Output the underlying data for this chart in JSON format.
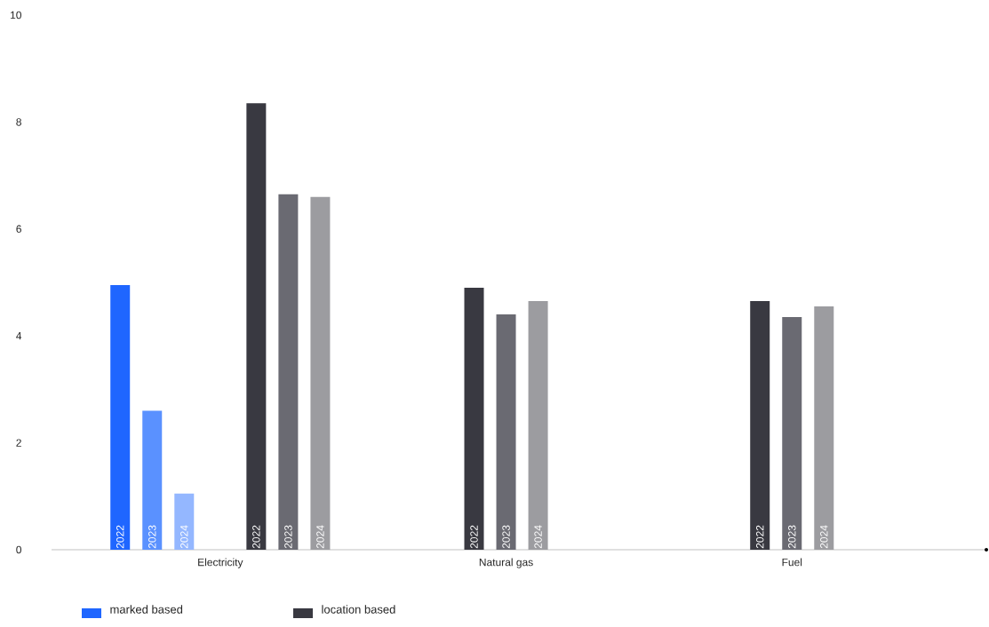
{
  "chart_data": {
    "type": "bar",
    "categories": [
      "Electricity",
      "Natural gas",
      "Fuel"
    ],
    "series": [
      {
        "name": "2022",
        "color": "#1f66ff",
        "values": [
          4.95,
          null,
          null
        ]
      },
      {
        "name": "2023",
        "color": "#5a91ff",
        "values": [
          2.6,
          null,
          null
        ]
      },
      {
        "name": "2024",
        "color": "#94b7ff",
        "values": [
          1.05,
          null,
          null
        ]
      },
      {
        "name": "2022",
        "color": "#393941",
        "values": [
          8.35,
          4.9,
          4.65
        ]
      },
      {
        "name": "2023",
        "color": "#6a6a72",
        "values": [
          6.65,
          4.4,
          4.35
        ]
      },
      {
        "name": "2024",
        "color": "#9c9ca0",
        "values": [
          6.6,
          4.65,
          4.55
        ]
      }
    ],
    "ylim": [
      0,
      10
    ],
    "yticks": [
      0,
      2,
      4,
      6,
      8,
      10
    ],
    "grid": false,
    "annotations": [
      "marked based",
      "location based"
    ]
  }
}
